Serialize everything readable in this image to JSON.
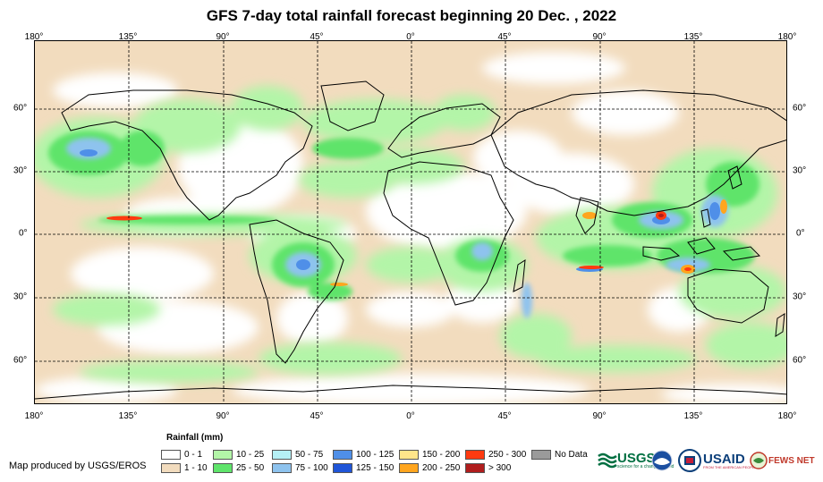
{
  "title": "GFS 7-day total rainfall forecast beginning 20 Dec. , 2022",
  "axes": {
    "lon_labels": [
      "180°",
      "135°",
      "90°",
      "45°",
      "0°",
      "45°",
      "90°",
      "135°",
      "180°"
    ],
    "lat_labels": [
      "60°",
      "30°",
      "0°",
      "30°",
      "60°"
    ]
  },
  "legend": {
    "title": "Rainfall (mm)",
    "items": [
      {
        "label": "0 - 1",
        "color": "#ffffff"
      },
      {
        "label": "1 - 10",
        "color": "#f2dcbe"
      },
      {
        "label": "10 - 25",
        "color": "#b3f5a8"
      },
      {
        "label": "25 - 50",
        "color": "#5fe46b"
      },
      {
        "label": "50 - 75",
        "color": "#b5f0f5"
      },
      {
        "label": "75 - 100",
        "color": "#8ec3ee"
      },
      {
        "label": "100 - 125",
        "color": "#4f8fe8"
      },
      {
        "label": "125 - 150",
        "color": "#1f55d8"
      },
      {
        "label": "150 - 200",
        "color": "#ffe58a"
      },
      {
        "label": "200 - 250",
        "color": "#ffa51e"
      },
      {
        "label": "250 - 300",
        "color": "#ff3a10"
      },
      {
        "label": "> 300",
        "color": "#b01d1d"
      },
      {
        "label": "No Data",
        "color": "#9a9a9a"
      }
    ]
  },
  "credit": "Map produced by USGS/EROS",
  "logos": {
    "usgs": "USGS",
    "usgs_tagline": "science for a changing world",
    "usaid": "USAID",
    "usaid_tagline": "FROM THE AMERICAN PEOPLE",
    "fewsnet": "FEWS NET"
  }
}
